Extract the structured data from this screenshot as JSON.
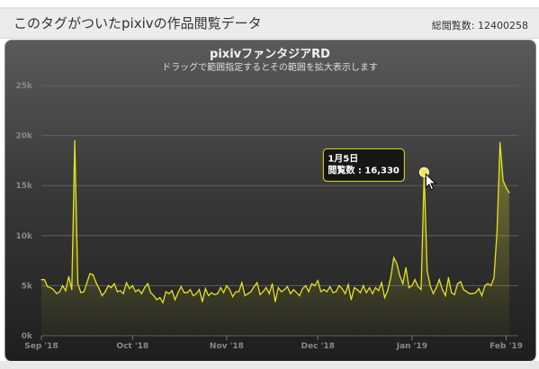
{
  "header": {
    "title": "このタグがついたpixivの作品閲覧データ",
    "views_label": "総閲覧数: 12400258"
  },
  "tooltip": {
    "date": "1月5日",
    "value_text": "閲覧数 : 16,330"
  },
  "colors": {
    "line": "#e5e21c",
    "marker": "#f2e64c",
    "grid": "#5f5f5f",
    "tick_text": "#888888"
  },
  "chart_data": {
    "type": "area",
    "title": "pixivファンタジアRD",
    "subtitle": "ドラッグで範囲指定するとその範囲を拡大表示します",
    "xlabel": "",
    "ylabel": "",
    "x_range": [
      "2018-09-01",
      "2019-02-05"
    ],
    "x_ticks": [
      {
        "label": "Sep '18",
        "date": "2018-09-01"
      },
      {
        "label": "Oct '18",
        "date": "2018-10-01"
      },
      {
        "label": "Nov '18",
        "date": "2018-11-01"
      },
      {
        "label": "Dec '18",
        "date": "2018-12-01"
      },
      {
        "label": "Jan '19",
        "date": "2019-01-01"
      },
      {
        "label": "Feb '19",
        "date": "2019-02-01"
      }
    ],
    "ylim": [
      0,
      25000
    ],
    "y_ticks": [
      {
        "label": "0k",
        "value": 0
      },
      {
        "label": "5k",
        "value": 5000
      },
      {
        "label": "10k",
        "value": 10000
      },
      {
        "label": "15k",
        "value": 15000
      },
      {
        "label": "20k",
        "value": 20000
      },
      {
        "label": "25k",
        "value": 25000
      }
    ],
    "grid": true,
    "legend": "none",
    "highlight": {
      "date": "2019-01-05",
      "value": 16330
    },
    "series": [
      {
        "values": [
          {
            "x": "2018-09-01",
            "y": 5600
          },
          {
            "x": "2018-09-02",
            "y": 5600
          },
          {
            "x": "2018-09-03",
            "y": 4900
          },
          {
            "x": "2018-09-04",
            "y": 4800
          },
          {
            "x": "2018-09-05",
            "y": 4600
          },
          {
            "x": "2018-09-06",
            "y": 4200
          },
          {
            "x": "2018-09-07",
            "y": 4400
          },
          {
            "x": "2018-09-08",
            "y": 5000
          },
          {
            "x": "2018-09-09",
            "y": 4500
          },
          {
            "x": "2018-09-10",
            "y": 5900
          },
          {
            "x": "2018-09-11",
            "y": 4600
          },
          {
            "x": "2018-09-12",
            "y": 19500
          },
          {
            "x": "2018-09-13",
            "y": 5200
          },
          {
            "x": "2018-09-14",
            "y": 4300
          },
          {
            "x": "2018-09-15",
            "y": 4400
          },
          {
            "x": "2018-09-16",
            "y": 5300
          },
          {
            "x": "2018-09-17",
            "y": 6200
          },
          {
            "x": "2018-09-18",
            "y": 6100
          },
          {
            "x": "2018-09-19",
            "y": 5300
          },
          {
            "x": "2018-09-20",
            "y": 4700
          },
          {
            "x": "2018-09-21",
            "y": 4000
          },
          {
            "x": "2018-09-22",
            "y": 4400
          },
          {
            "x": "2018-09-23",
            "y": 5000
          },
          {
            "x": "2018-09-24",
            "y": 4800
          },
          {
            "x": "2018-09-25",
            "y": 5200
          },
          {
            "x": "2018-09-26",
            "y": 4400
          },
          {
            "x": "2018-09-27",
            "y": 4500
          },
          {
            "x": "2018-09-28",
            "y": 4200
          },
          {
            "x": "2018-09-29",
            "y": 5300
          },
          {
            "x": "2018-09-30",
            "y": 4700
          },
          {
            "x": "2018-10-01",
            "y": 5000
          },
          {
            "x": "2018-10-02",
            "y": 4400
          },
          {
            "x": "2018-10-03",
            "y": 4600
          },
          {
            "x": "2018-10-04",
            "y": 4200
          },
          {
            "x": "2018-10-05",
            "y": 4800
          },
          {
            "x": "2018-10-06",
            "y": 5200
          },
          {
            "x": "2018-10-07",
            "y": 4300
          },
          {
            "x": "2018-10-08",
            "y": 4000
          },
          {
            "x": "2018-10-09",
            "y": 3600
          },
          {
            "x": "2018-10-10",
            "y": 3800
          },
          {
            "x": "2018-10-11",
            "y": 3300
          },
          {
            "x": "2018-10-12",
            "y": 4400
          },
          {
            "x": "2018-10-13",
            "y": 4200
          },
          {
            "x": "2018-10-14",
            "y": 4500
          },
          {
            "x": "2018-10-15",
            "y": 3600
          },
          {
            "x": "2018-10-16",
            "y": 4300
          },
          {
            "x": "2018-10-17",
            "y": 4900
          },
          {
            "x": "2018-10-18",
            "y": 4300
          },
          {
            "x": "2018-10-19",
            "y": 4300
          },
          {
            "x": "2018-10-20",
            "y": 4600
          },
          {
            "x": "2018-10-21",
            "y": 4000
          },
          {
            "x": "2018-10-22",
            "y": 4200
          },
          {
            "x": "2018-10-23",
            "y": 4600
          },
          {
            "x": "2018-10-24",
            "y": 3400
          },
          {
            "x": "2018-10-25",
            "y": 4700
          },
          {
            "x": "2018-10-26",
            "y": 4000
          },
          {
            "x": "2018-10-27",
            "y": 4300
          },
          {
            "x": "2018-10-28",
            "y": 4100
          },
          {
            "x": "2018-10-29",
            "y": 4200
          },
          {
            "x": "2018-10-30",
            "y": 4800
          },
          {
            "x": "2018-10-31",
            "y": 4300
          },
          {
            "x": "2018-11-01",
            "y": 5000
          },
          {
            "x": "2018-11-02",
            "y": 4600
          },
          {
            "x": "2018-11-03",
            "y": 3900
          },
          {
            "x": "2018-11-04",
            "y": 4400
          },
          {
            "x": "2018-11-05",
            "y": 4400
          },
          {
            "x": "2018-11-06",
            "y": 5300
          },
          {
            "x": "2018-11-07",
            "y": 4000
          },
          {
            "x": "2018-11-08",
            "y": 4200
          },
          {
            "x": "2018-11-09",
            "y": 4400
          },
          {
            "x": "2018-11-10",
            "y": 4900
          },
          {
            "x": "2018-11-11",
            "y": 5300
          },
          {
            "x": "2018-11-12",
            "y": 4100
          },
          {
            "x": "2018-11-13",
            "y": 4400
          },
          {
            "x": "2018-11-14",
            "y": 4800
          },
          {
            "x": "2018-11-15",
            "y": 4200
          },
          {
            "x": "2018-11-16",
            "y": 5200
          },
          {
            "x": "2018-11-17",
            "y": 3400
          },
          {
            "x": "2018-11-18",
            "y": 4800
          },
          {
            "x": "2018-11-19",
            "y": 4400
          },
          {
            "x": "2018-11-20",
            "y": 4600
          },
          {
            "x": "2018-11-21",
            "y": 4900
          },
          {
            "x": "2018-11-22",
            "y": 4200
          },
          {
            "x": "2018-11-23",
            "y": 4600
          },
          {
            "x": "2018-11-24",
            "y": 4300
          },
          {
            "x": "2018-11-25",
            "y": 4000
          },
          {
            "x": "2018-11-26",
            "y": 4700
          },
          {
            "x": "2018-11-27",
            "y": 5000
          },
          {
            "x": "2018-11-28",
            "y": 4400
          },
          {
            "x": "2018-11-29",
            "y": 5200
          },
          {
            "x": "2018-11-30",
            "y": 5000
          },
          {
            "x": "2018-12-01",
            "y": 5500
          },
          {
            "x": "2018-12-02",
            "y": 4400
          },
          {
            "x": "2018-12-03",
            "y": 4600
          },
          {
            "x": "2018-12-04",
            "y": 4400
          },
          {
            "x": "2018-12-05",
            "y": 4900
          },
          {
            "x": "2018-12-06",
            "y": 4300
          },
          {
            "x": "2018-12-07",
            "y": 4400
          },
          {
            "x": "2018-12-08",
            "y": 5000
          },
          {
            "x": "2018-12-09",
            "y": 4700
          },
          {
            "x": "2018-12-10",
            "y": 4200
          },
          {
            "x": "2018-12-11",
            "y": 5100
          },
          {
            "x": "2018-12-12",
            "y": 3600
          },
          {
            "x": "2018-12-13",
            "y": 4800
          },
          {
            "x": "2018-12-14",
            "y": 4600
          },
          {
            "x": "2018-12-15",
            "y": 4300
          },
          {
            "x": "2018-12-16",
            "y": 5000
          },
          {
            "x": "2018-12-17",
            "y": 4300
          },
          {
            "x": "2018-12-18",
            "y": 4800
          },
          {
            "x": "2018-12-19",
            "y": 4200
          },
          {
            "x": "2018-12-20",
            "y": 4800
          },
          {
            "x": "2018-12-21",
            "y": 4500
          },
          {
            "x": "2018-12-22",
            "y": 5300
          },
          {
            "x": "2018-12-23",
            "y": 3800
          },
          {
            "x": "2018-12-24",
            "y": 4500
          },
          {
            "x": "2018-12-25",
            "y": 5800
          },
          {
            "x": "2018-12-26",
            "y": 7800
          },
          {
            "x": "2018-12-27",
            "y": 7200
          },
          {
            "x": "2018-12-28",
            "y": 6000
          },
          {
            "x": "2018-12-29",
            "y": 5200
          },
          {
            "x": "2018-12-30",
            "y": 6800
          },
          {
            "x": "2018-12-31",
            "y": 4800
          },
          {
            "x": "2019-01-01",
            "y": 5000
          },
          {
            "x": "2019-01-02",
            "y": 5600
          },
          {
            "x": "2019-01-03",
            "y": 4900
          },
          {
            "x": "2019-01-04",
            "y": 4600
          },
          {
            "x": "2019-01-05",
            "y": 16330
          },
          {
            "x": "2019-01-06",
            "y": 6500
          },
          {
            "x": "2019-01-07",
            "y": 5000
          },
          {
            "x": "2019-01-08",
            "y": 4200
          },
          {
            "x": "2019-01-09",
            "y": 4800
          },
          {
            "x": "2019-01-10",
            "y": 5600
          },
          {
            "x": "2019-01-11",
            "y": 4600
          },
          {
            "x": "2019-01-12",
            "y": 4000
          },
          {
            "x": "2019-01-13",
            "y": 5800
          },
          {
            "x": "2019-01-14",
            "y": 4300
          },
          {
            "x": "2019-01-15",
            "y": 4100
          },
          {
            "x": "2019-01-16",
            "y": 5200
          },
          {
            "x": "2019-01-17",
            "y": 5400
          },
          {
            "x": "2019-01-18",
            "y": 4600
          },
          {
            "x": "2019-01-19",
            "y": 4400
          },
          {
            "x": "2019-01-20",
            "y": 4200
          },
          {
            "x": "2019-01-21",
            "y": 4200
          },
          {
            "x": "2019-01-22",
            "y": 4300
          },
          {
            "x": "2019-01-23",
            "y": 4700
          },
          {
            "x": "2019-01-24",
            "y": 4000
          },
          {
            "x": "2019-01-25",
            "y": 5000
          },
          {
            "x": "2019-01-26",
            "y": 5200
          },
          {
            "x": "2019-01-27",
            "y": 5000
          },
          {
            "x": "2019-01-28",
            "y": 5800
          },
          {
            "x": "2019-01-29",
            "y": 10500
          },
          {
            "x": "2019-01-30",
            "y": 19300
          },
          {
            "x": "2019-01-31",
            "y": 15500
          },
          {
            "x": "2019-02-01",
            "y": 14800
          },
          {
            "x": "2019-02-02",
            "y": 14300
          }
        ]
      }
    ]
  }
}
